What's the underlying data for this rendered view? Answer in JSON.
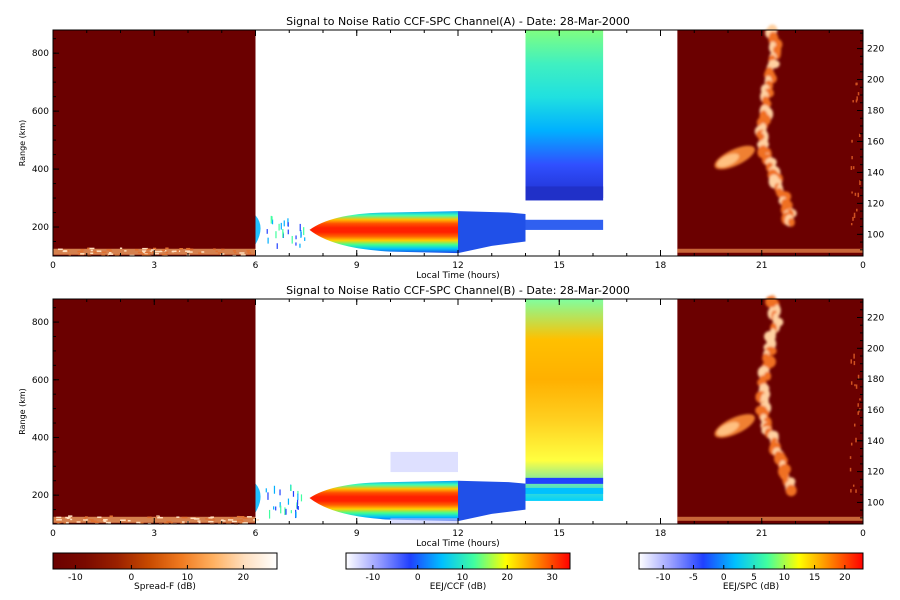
{
  "chart_data": [
    {
      "type": "heatmap",
      "title": "Signal to Noise Ratio CCF-SPC Channel(A) - Date: 28-Mar-2000",
      "xlabel": "Local Time (hours)",
      "ylabel": "Range (km)",
      "x_ticks": [
        "0",
        "3",
        "6",
        "9",
        "12",
        "15",
        "18",
        "21",
        "0"
      ],
      "y_ticks_left": [
        200,
        400,
        600,
        800
      ],
      "y_ticks_right": [
        100,
        120,
        140,
        160,
        180,
        200,
        220
      ],
      "xlim": [
        0,
        24
      ],
      "ylim_left": [
        100,
        880
      ],
      "ylim_right": [
        86,
        232
      ],
      "segments": [
        {
          "colorbar": "Spread-F (dB)",
          "x_range": [
            0,
            6
          ],
          "y_range": [
            100,
            880
          ],
          "note": "background"
        },
        {
          "colorbar": "EEJ/CCF (dB)",
          "x_range": [
            6,
            14
          ],
          "y_range": [
            110,
            260
          ]
        },
        {
          "colorbar": "EEJ/SPC (dB)",
          "x_range": [
            14,
            16.3
          ],
          "y_range": [
            180,
            880
          ]
        },
        {
          "colorbar": "Spread-F (dB)",
          "x_range": [
            18.5,
            24
          ],
          "y_range": [
            100,
            880
          ]
        }
      ]
    },
    {
      "type": "heatmap",
      "title": "Signal to Noise Ratio CCF-SPC Channel(B) - Date: 28-Mar-2000",
      "xlabel": "Local Time (hours)",
      "ylabel": "Range (km)",
      "x_ticks": [
        "0",
        "3",
        "6",
        "9",
        "12",
        "15",
        "18",
        "21",
        "0"
      ],
      "y_ticks_left": [
        200,
        400,
        600,
        800
      ],
      "y_ticks_right": [
        100,
        120,
        140,
        160,
        180,
        200,
        220
      ],
      "xlim": [
        0,
        24
      ],
      "ylim_left": [
        100,
        880
      ],
      "ylim_right": [
        86,
        232
      ],
      "segments": [
        {
          "colorbar": "Spread-F (dB)",
          "x_range": [
            0,
            6
          ],
          "y_range": [
            100,
            880
          ]
        },
        {
          "colorbar": "EEJ/CCF (dB)",
          "x_range": [
            6,
            14
          ],
          "y_range": [
            100,
            350
          ]
        },
        {
          "colorbar": "EEJ/SPC (dB)",
          "x_range": [
            14,
            16.3
          ],
          "y_range": [
            180,
            880
          ]
        },
        {
          "colorbar": "Spread-F (dB)",
          "x_range": [
            18.5,
            24
          ],
          "y_range": [
            100,
            880
          ]
        }
      ]
    }
  ],
  "colorbars": [
    {
      "label": "Spread-F (dB)",
      "ticks": [
        -10,
        0,
        10,
        20
      ],
      "range": [
        -14,
        26
      ],
      "stops": [
        "#6b0000",
        "#7a0a00",
        "#9a2000",
        "#c84a00",
        "#f07a20",
        "#ffb060",
        "#ffe0c0",
        "#ffffff"
      ]
    },
    {
      "label": "EEJ/CCF (dB)",
      "ticks": [
        -10,
        0,
        10,
        20,
        30
      ],
      "range": [
        -16,
        34
      ],
      "stops": [
        "#ffffff",
        "#9aa0ff",
        "#2040ff",
        "#00c0ff",
        "#40ffa0",
        "#ffff00",
        "#ff8000",
        "#ff0000"
      ]
    },
    {
      "label": "EEJ/SPC (dB)",
      "ticks": [
        -10,
        -5,
        0,
        5,
        10,
        15,
        20
      ],
      "range": [
        -14,
        23
      ],
      "stops": [
        "#ffffff",
        "#9aa0ff",
        "#2040ff",
        "#00c0ff",
        "#40ffa0",
        "#ffff00",
        "#ff8000",
        "#ff0000"
      ]
    }
  ]
}
